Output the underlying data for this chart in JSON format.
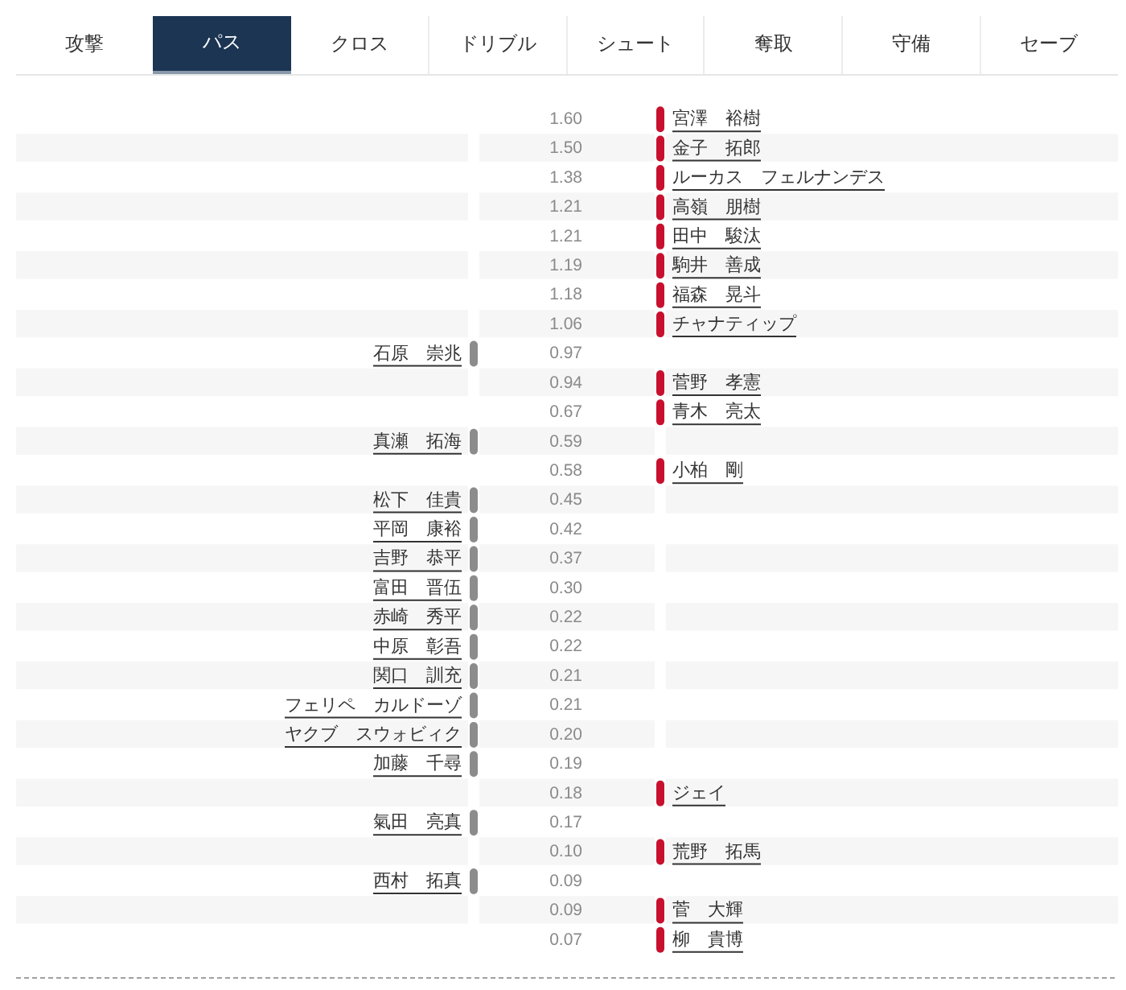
{
  "chart_data": {
    "type": "other",
    "title": "パス",
    "annotations": [
      "攻撃",
      "クロス",
      "ドリブル",
      "シュート",
      "奪取",
      "守備",
      "セーブ"
    ],
    "categories": [
      "宮澤　裕樹",
      "金子　拓郎",
      "ルーカス　フェルナンデス",
      "高嶺　朋樹",
      "田中　駿汰",
      "駒井　善成",
      "福森　晃斗",
      "チャナティップ",
      "石原　崇兆",
      "菅野　孝憲",
      "青木　亮太",
      "真瀬　拓海",
      "小柏　剛",
      "松下　佳貴",
      "平岡　康裕",
      "吉野　恭平",
      "富田　晋伍",
      "赤崎　秀平",
      "中原　彰吾",
      "関口　訓充",
      "フェリペ　カルドーゾ",
      "ヤクブ　スウォビィク",
      "加藤　千尋",
      "ジェイ",
      "氣田　亮真",
      "荒野　拓馬",
      "西村　拓真",
      "菅　大輝",
      "柳　貴博"
    ],
    "series": [
      {
        "color": "#8c8c8c",
        "values": [
          null,
          null,
          null,
          null,
          null,
          null,
          null,
          null,
          0.97,
          null,
          null,
          0.59,
          null,
          0.45,
          0.42,
          0.37,
          0.3,
          0.22,
          0.22,
          0.21,
          0.21,
          0.2,
          0.19,
          null,
          0.17,
          null,
          0.09,
          null,
          null
        ],
        "value_labels": [
          null,
          null,
          null,
          null,
          null,
          null,
          null,
          null,
          "0.97",
          null,
          null,
          "0.59",
          null,
          "0.45",
          "0.42",
          "0.37",
          "0.30",
          "0.22",
          "0.22",
          "0.21",
          "0.21",
          "0.20",
          "0.19",
          null,
          "0.17",
          null,
          "0.09",
          null,
          null
        ]
      },
      {
        "color": "#c8102e",
        "values": [
          1.6,
          1.5,
          1.38,
          1.21,
          1.21,
          1.19,
          1.18,
          1.06,
          null,
          0.94,
          0.67,
          null,
          0.58,
          null,
          null,
          null,
          null,
          null,
          null,
          null,
          null,
          null,
          null,
          0.18,
          null,
          0.1,
          null,
          0.09,
          0.07
        ],
        "value_labels": [
          "1.60",
          "1.50",
          "1.38",
          "1.21",
          "1.21",
          "1.19",
          "1.18",
          "1.06",
          null,
          "0.94",
          "0.67",
          null,
          "0.58",
          null,
          null,
          null,
          null,
          null,
          null,
          null,
          null,
          null,
          null,
          "0.18",
          null,
          "0.10",
          null,
          "0.09",
          "0.07"
        ]
      }
    ]
  }
}
